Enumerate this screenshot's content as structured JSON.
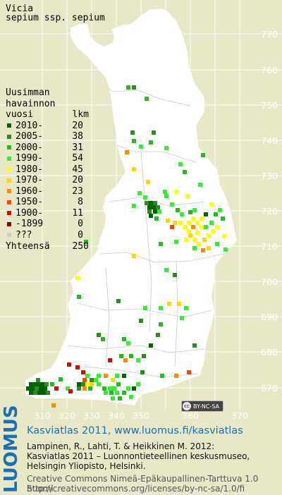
{
  "map": {
    "title": "Vicia",
    "subtitle": "sepium ssp. sepium",
    "colors": {
      "background": "#e8e8c8",
      "land": "#ffffff",
      "borders": "#c0c0c0",
      "tick_text": "#ffffff"
    },
    "y_ticks": [
      "770",
      "760",
      "750",
      "740",
      "730",
      "720",
      "710",
      "700",
      "690",
      "680",
      "670"
    ],
    "x_ticks": [
      "310",
      "320",
      "330",
      "340",
      "350",
      "360",
      "370"
    ],
    "license_badge": "BY-NC-SA"
  },
  "legend": {
    "heading": [
      "Uusimman",
      "havainnon"
    ],
    "col_period": "vuosi",
    "col_count": "lkm",
    "rows": [
      {
        "label": "2010-",
        "count": "20",
        "color": "#006400"
      },
      {
        "label": "2005-",
        "count": "38",
        "color": "#2e8b22"
      },
      {
        "label": "2000-",
        "count": "31",
        "color": "#22bb22"
      },
      {
        "label": "1990-",
        "count": "54",
        "color": "#33ee33"
      },
      {
        "label": "1980-",
        "count": "45",
        "color": "#ffff00"
      },
      {
        "label": "1970-",
        "count": "20",
        "color": "#ffd700"
      },
      {
        "label": "1960-",
        "count": "23",
        "color": "#ff8c00"
      },
      {
        "label": "1950-",
        "count": "8",
        "color": "#ff4500"
      },
      {
        "label": "1900-",
        "count": "11",
        "color": "#cc1100"
      },
      {
        "label": "-1899",
        "count": "0",
        "color": "#8b0000"
      },
      {
        "label": "???",
        "count": "0",
        "color": "#cccccc"
      }
    ],
    "total_label": "Yhteensä",
    "total_count": "250"
  },
  "footer": {
    "logo": "LUOMUS",
    "headline": "Kasviatlas 2011, www.luomus.fi/kasviatlas",
    "citation": [
      "Lampinen, R., Lahti, T. & Heikkinen M. 2012:",
      "Kasviatlas 2011 – Luonnontieteellinen keskusmuseo,",
      "Helsingin Yliopisto, Helsinki."
    ],
    "license": [
      "Creative Commons Nimeä-Epäkaupallinen-Tarttuva 1.0 Suomi",
      "http://creativecommons.org/licenses/by-nc-sa/1.0/fi"
    ]
  },
  "occurrences": [
    {
      "x": 44,
      "y": 545,
      "c": 0
    },
    {
      "x": 50,
      "y": 545,
      "c": 0
    },
    {
      "x": 56,
      "y": 545,
      "c": 0
    },
    {
      "x": 62,
      "y": 545,
      "c": 0
    },
    {
      "x": 40,
      "y": 551,
      "c": 0
    },
    {
      "x": 46,
      "y": 551,
      "c": 0
    },
    {
      "x": 52,
      "y": 551,
      "c": 1
    },
    {
      "x": 58,
      "y": 551,
      "c": 0
    },
    {
      "x": 64,
      "y": 551,
      "c": 0
    },
    {
      "x": 44,
      "y": 557,
      "c": 0
    },
    {
      "x": 50,
      "y": 557,
      "c": 1
    },
    {
      "x": 56,
      "y": 557,
      "c": 0
    },
    {
      "x": 62,
      "y": 557,
      "c": 0
    },
    {
      "x": 68,
      "y": 557,
      "c": 1
    },
    {
      "x": 54,
      "y": 539,
      "c": 1
    },
    {
      "x": 66,
      "y": 545,
      "c": 1
    },
    {
      "x": 74,
      "y": 545,
      "c": 2
    },
    {
      "x": 80,
      "y": 551,
      "c": 8
    },
    {
      "x": 86,
      "y": 538,
      "c": 2
    },
    {
      "x": 96,
      "y": 551,
      "c": 3
    },
    {
      "x": 100,
      "y": 555,
      "c": 8
    },
    {
      "x": 76,
      "y": 575,
      "c": 6
    },
    {
      "x": 112,
      "y": 545,
      "c": 0
    },
    {
      "x": 118,
      "y": 545,
      "c": 1
    },
    {
      "x": 124,
      "y": 545,
      "c": 4
    },
    {
      "x": 130,
      "y": 545,
      "c": 5
    },
    {
      "x": 112,
      "y": 551,
      "c": 1
    },
    {
      "x": 120,
      "y": 551,
      "c": 6
    },
    {
      "x": 128,
      "y": 551,
      "c": 2
    },
    {
      "x": 120,
      "y": 539,
      "c": 7
    },
    {
      "x": 130,
      "y": 539,
      "c": 1
    },
    {
      "x": 136,
      "y": 539,
      "c": 3
    },
    {
      "x": 118,
      "y": 528,
      "c": 8
    },
    {
      "x": 124,
      "y": 533,
      "c": 3
    },
    {
      "x": 140,
      "y": 533,
      "c": 3
    },
    {
      "x": 150,
      "y": 533,
      "c": 6
    },
    {
      "x": 160,
      "y": 539,
      "c": 5
    },
    {
      "x": 166,
      "y": 533,
      "c": 3
    },
    {
      "x": 176,
      "y": 533,
      "c": 0
    },
    {
      "x": 140,
      "y": 545,
      "c": 3
    },
    {
      "x": 148,
      "y": 551,
      "c": 2
    },
    {
      "x": 156,
      "y": 551,
      "c": 3
    },
    {
      "x": 162,
      "y": 551,
      "c": 3
    },
    {
      "x": 168,
      "y": 545,
      "c": 2
    },
    {
      "x": 150,
      "y": 557,
      "c": 3
    },
    {
      "x": 158,
      "y": 557,
      "c": 2
    },
    {
      "x": 166,
      "y": 557,
      "c": 3
    },
    {
      "x": 176,
      "y": 557,
      "c": 2
    },
    {
      "x": 182,
      "y": 551,
      "c": 3
    },
    {
      "x": 190,
      "y": 551,
      "c": 0
    },
    {
      "x": 196,
      "y": 545,
      "c": 3
    },
    {
      "x": 186,
      "y": 563,
      "c": 3
    },
    {
      "x": 160,
      "y": 565,
      "c": 3
    },
    {
      "x": 170,
      "y": 565,
      "c": 2
    },
    {
      "x": 202,
      "y": 528,
      "c": 1
    },
    {
      "x": 230,
      "y": 533,
      "c": 2
    },
    {
      "x": 250,
      "y": 533,
      "c": 6
    },
    {
      "x": 268,
      "y": 528,
      "c": 7
    },
    {
      "x": 140,
      "y": 475,
      "c": 1
    },
    {
      "x": 146,
      "y": 481,
      "c": 2
    },
    {
      "x": 176,
      "y": 481,
      "c": 2
    },
    {
      "x": 182,
      "y": 487,
      "c": 3
    },
    {
      "x": 172,
      "y": 505,
      "c": 2
    },
    {
      "x": 178,
      "y": 511,
      "c": 6
    },
    {
      "x": 156,
      "y": 511,
      "c": 8
    },
    {
      "x": 186,
      "y": 505,
      "c": 2
    },
    {
      "x": 204,
      "y": 505,
      "c": 1
    },
    {
      "x": 196,
      "y": 511,
      "c": 3
    },
    {
      "x": 214,
      "y": 490,
      "c": 0
    },
    {
      "x": 224,
      "y": 475,
      "c": 1
    },
    {
      "x": 228,
      "y": 460,
      "c": 2
    },
    {
      "x": 200,
      "y": 455,
      "c": 1
    },
    {
      "x": 206,
      "y": 437,
      "c": 3
    },
    {
      "x": 228,
      "y": 437,
      "c": 3
    },
    {
      "x": 240,
      "y": 431,
      "c": 5
    },
    {
      "x": 254,
      "y": 431,
      "c": 5
    },
    {
      "x": 264,
      "y": 437,
      "c": 3
    },
    {
      "x": 258,
      "y": 451,
      "c": 3
    },
    {
      "x": 276,
      "y": 490,
      "c": 1
    },
    {
      "x": 190,
      "y": 363,
      "c": 5
    },
    {
      "x": 236,
      "y": 383,
      "c": 3
    },
    {
      "x": 248,
      "y": 390,
      "c": 1
    },
    {
      "x": 110,
      "y": 394,
      "c": 4
    },
    {
      "x": 122,
      "y": 343,
      "c": 2
    },
    {
      "x": 98,
      "y": 517,
      "c": 8
    },
    {
      "x": 110,
      "y": 521,
      "c": 8
    },
    {
      "x": 208,
      "y": 288,
      "c": 1
    },
    {
      "x": 214,
      "y": 288,
      "c": 0
    },
    {
      "x": 220,
      "y": 288,
      "c": 1
    },
    {
      "x": 212,
      "y": 294,
      "c": 0
    },
    {
      "x": 218,
      "y": 294,
      "c": 0
    },
    {
      "x": 224,
      "y": 294,
      "c": 1
    },
    {
      "x": 212,
      "y": 300,
      "c": 1
    },
    {
      "x": 220,
      "y": 300,
      "c": 0
    },
    {
      "x": 226,
      "y": 300,
      "c": 3
    },
    {
      "x": 214,
      "y": 306,
      "c": 0
    },
    {
      "x": 222,
      "y": 310,
      "c": 2
    },
    {
      "x": 206,
      "y": 280,
      "c": 3
    },
    {
      "x": 190,
      "y": 292,
      "c": 3
    },
    {
      "x": 234,
      "y": 272,
      "c": 3
    },
    {
      "x": 250,
      "y": 272,
      "c": 4
    },
    {
      "x": 266,
      "y": 278,
      "c": 4
    },
    {
      "x": 244,
      "y": 290,
      "c": 3
    },
    {
      "x": 270,
      "y": 301,
      "c": 2
    },
    {
      "x": 276,
      "y": 298,
      "c": 3
    },
    {
      "x": 252,
      "y": 298,
      "c": 2
    },
    {
      "x": 258,
      "y": 304,
      "c": 3
    },
    {
      "x": 274,
      "y": 310,
      "c": 4
    },
    {
      "x": 280,
      "y": 316,
      "c": 4
    },
    {
      "x": 286,
      "y": 310,
      "c": 4
    },
    {
      "x": 268,
      "y": 316,
      "c": 4
    },
    {
      "x": 262,
      "y": 322,
      "c": 4
    },
    {
      "x": 268,
      "y": 328,
      "c": 4
    },
    {
      "x": 274,
      "y": 322,
      "c": 6
    },
    {
      "x": 280,
      "y": 330,
      "c": 4
    },
    {
      "x": 286,
      "y": 322,
      "c": 4
    },
    {
      "x": 292,
      "y": 322,
      "c": 3
    },
    {
      "x": 270,
      "y": 334,
      "c": 5
    },
    {
      "x": 276,
      "y": 340,
      "c": 4
    },
    {
      "x": 264,
      "y": 340,
      "c": 4
    },
    {
      "x": 282,
      "y": 346,
      "c": 4
    },
    {
      "x": 290,
      "y": 340,
      "c": 5
    },
    {
      "x": 296,
      "y": 334,
      "c": 4
    },
    {
      "x": 302,
      "y": 328,
      "c": 4
    },
    {
      "x": 308,
      "y": 322,
      "c": 4
    },
    {
      "x": 300,
      "y": 316,
      "c": 3
    },
    {
      "x": 292,
      "y": 304,
      "c": 0
    },
    {
      "x": 306,
      "y": 304,
      "c": 2
    },
    {
      "x": 312,
      "y": 298,
      "c": 3
    },
    {
      "x": 300,
      "y": 290,
      "c": 4
    },
    {
      "x": 316,
      "y": 310,
      "c": 2
    },
    {
      "x": 296,
      "y": 352,
      "c": 5
    },
    {
      "x": 308,
      "y": 346,
      "c": 3
    },
    {
      "x": 288,
      "y": 355,
      "c": 6
    },
    {
      "x": 276,
      "y": 352,
      "c": 3
    },
    {
      "x": 250,
      "y": 343,
      "c": 3
    },
    {
      "x": 244,
      "y": 322,
      "c": 7
    },
    {
      "x": 248,
      "y": 316,
      "c": 5
    },
    {
      "x": 256,
      "y": 316,
      "c": 4
    },
    {
      "x": 238,
      "y": 313,
      "c": 5
    },
    {
      "x": 318,
      "y": 335,
      "c": 4
    },
    {
      "x": 320,
      "y": 354,
      "c": 3
    },
    {
      "x": 182,
      "y": 124,
      "c": 2
    },
    {
      "x": 190,
      "y": 124,
      "c": 1
    },
    {
      "x": 208,
      "y": 140,
      "c": 2
    },
    {
      "x": 188,
      "y": 188,
      "c": 1
    },
    {
      "x": 190,
      "y": 200,
      "c": 2
    },
    {
      "x": 200,
      "y": 208,
      "c": 3
    },
    {
      "x": 214,
      "y": 202,
      "c": 2
    },
    {
      "x": 218,
      "y": 188,
      "c": 1
    },
    {
      "x": 180,
      "y": 216,
      "c": 6
    },
    {
      "x": 236,
      "y": 210,
      "c": 3
    },
    {
      "x": 256,
      "y": 233,
      "c": 3
    },
    {
      "x": 262,
      "y": 244,
      "c": 2
    },
    {
      "x": 284,
      "y": 262,
      "c": 3
    },
    {
      "x": 288,
      "y": 220,
      "c": 2
    },
    {
      "x": 190,
      "y": 240,
      "c": 5
    },
    {
      "x": 210,
      "y": 258,
      "c": 5
    },
    {
      "x": 198,
      "y": 274,
      "c": 3
    },
    {
      "x": 236,
      "y": 278,
      "c": 3
    },
    {
      "x": 228,
      "y": 346,
      "c": 2
    },
    {
      "x": 112,
      "y": 421,
      "c": 2
    },
    {
      "x": 168,
      "y": 427,
      "c": 1
    }
  ]
}
